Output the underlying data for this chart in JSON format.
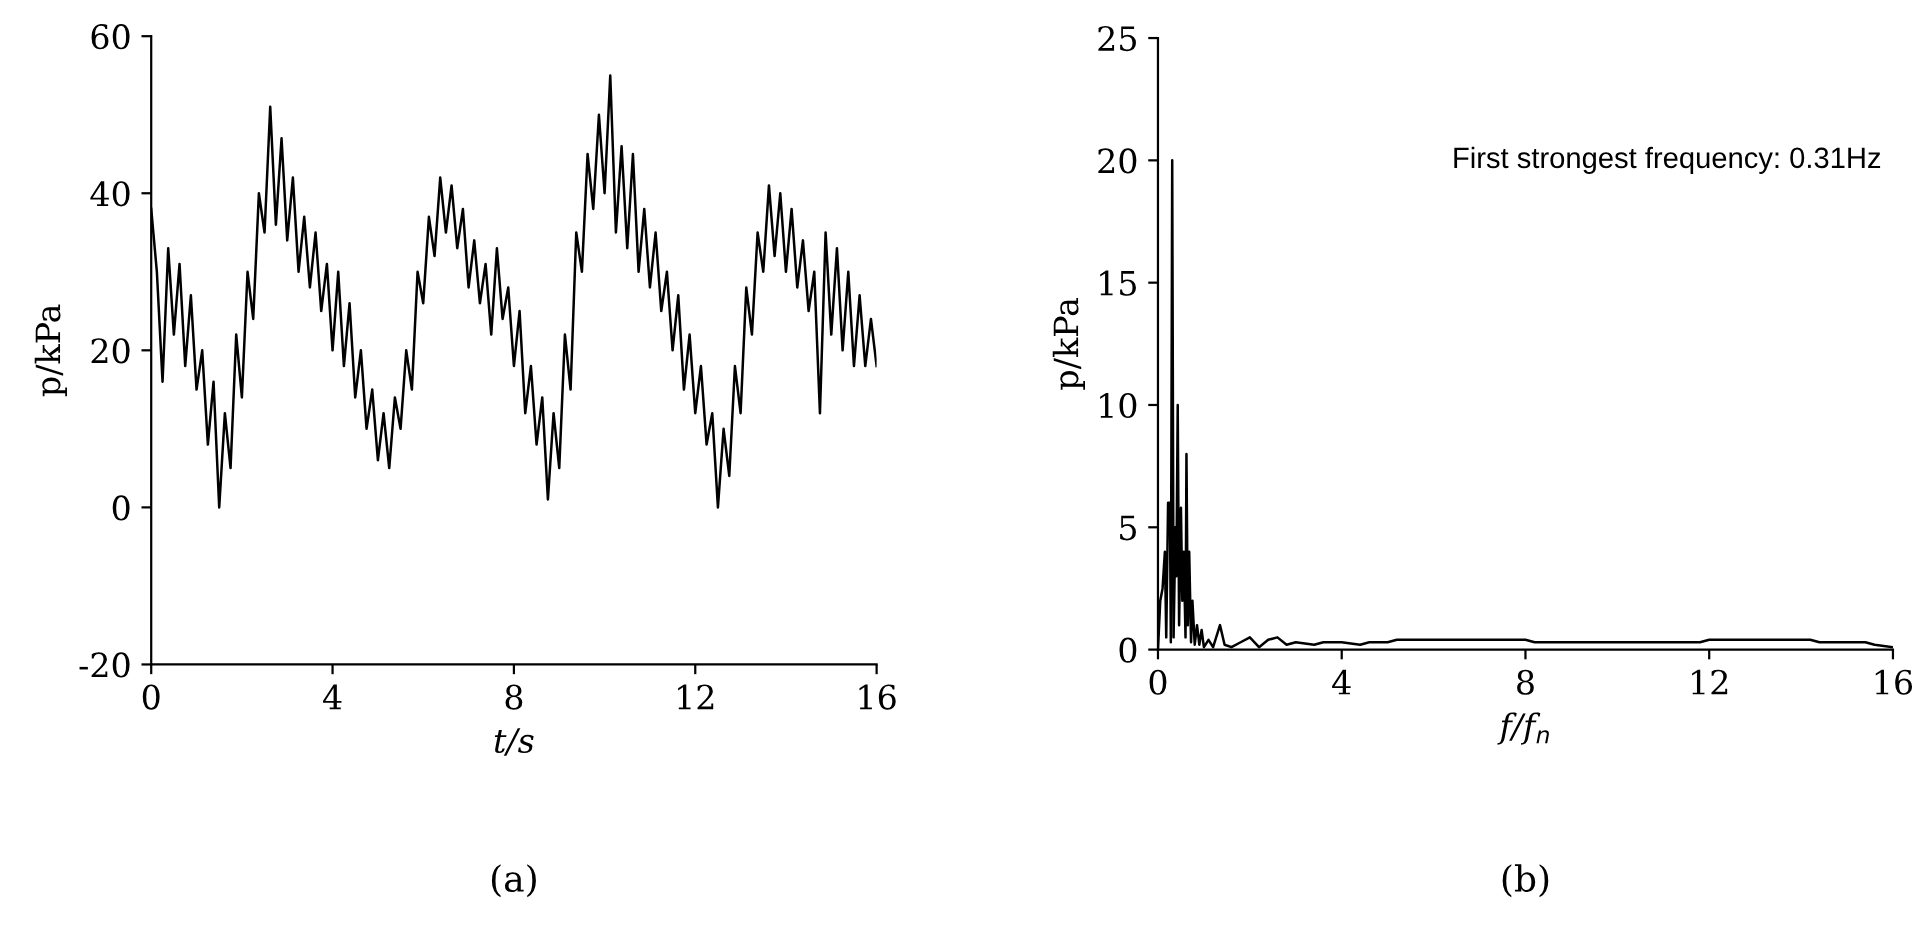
{
  "chart_data": [
    {
      "type": "line",
      "xlabel": "t/s",
      "ylabel": "p/kPa",
      "xlim": [
        0,
        16
      ],
      "xticks": [
        0,
        4,
        8,
        12,
        16
      ],
      "ylim": [
        -20,
        60
      ],
      "yticks": [
        -20,
        0,
        20,
        40,
        60
      ],
      "grid": false,
      "legend": false,
      "annotations": [
        "(a)"
      ],
      "series": [
        {
          "color": "#000000",
          "x": [
            0,
            0.125,
            0.25,
            0.375,
            0.5,
            0.625,
            0.75,
            0.875,
            1,
            1.125,
            1.25,
            1.375,
            1.5,
            1.625,
            1.75,
            1.875,
            2,
            2.125,
            2.25,
            2.375,
            2.5,
            2.625,
            2.75,
            2.875,
            3,
            3.125,
            3.25,
            3.375,
            3.5,
            3.625,
            3.75,
            3.875,
            4,
            4.125,
            4.25,
            4.375,
            4.5,
            4.625,
            4.75,
            4.875,
            5,
            5.125,
            5.25,
            5.375,
            5.5,
            5.625,
            5.75,
            5.875,
            6,
            6.125,
            6.25,
            6.375,
            6.5,
            6.625,
            6.75,
            6.875,
            7,
            7.125,
            7.25,
            7.375,
            7.5,
            7.625,
            7.75,
            7.875,
            8,
            8.125,
            8.25,
            8.375,
            8.5,
            8.625,
            8.75,
            8.875,
            9,
            9.125,
            9.25,
            9.375,
            9.5,
            9.625,
            9.75,
            9.875,
            10,
            10.125,
            10.25,
            10.375,
            10.5,
            10.625,
            10.75,
            10.875,
            11,
            11.125,
            11.25,
            11.375,
            11.5,
            11.625,
            11.75,
            11.875,
            12,
            12.125,
            12.25,
            12.375,
            12.5,
            12.625,
            12.75,
            12.875,
            13,
            13.125,
            13.25,
            13.375,
            13.5,
            13.625,
            13.75,
            13.875,
            14,
            14.125,
            14.25,
            14.375,
            14.5,
            14.625,
            14.75,
            14.875,
            15,
            15.125,
            15.25,
            15.375,
            15.5,
            15.625,
            15.75,
            15.875,
            16
          ],
          "values": [
            38,
            30,
            16,
            33,
            22,
            31,
            18,
            27,
            15,
            20,
            8,
            16,
            0,
            12,
            5,
            22,
            14,
            30,
            24,
            40,
            35,
            51,
            36,
            47,
            34,
            42,
            30,
            37,
            28,
            35,
            25,
            31,
            20,
            30,
            18,
            26,
            14,
            20,
            10,
            15,
            6,
            12,
            5,
            14,
            10,
            20,
            15,
            30,
            26,
            37,
            32,
            42,
            35,
            41,
            33,
            38,
            28,
            34,
            26,
            31,
            22,
            33,
            24,
            28,
            18,
            25,
            12,
            18,
            8,
            14,
            1,
            12,
            5,
            22,
            15,
            35,
            30,
            45,
            38,
            50,
            40,
            55,
            35,
            46,
            33,
            45,
            30,
            38,
            28,
            35,
            25,
            30,
            20,
            27,
            15,
            22,
            12,
            18,
            8,
            12,
            0,
            10,
            4,
            18,
            12,
            28,
            22,
            35,
            30,
            41,
            32,
            40,
            30,
            38,
            28,
            34,
            25,
            30,
            12,
            35,
            22,
            33,
            20,
            30,
            18,
            27,
            18,
            24,
            18
          ]
        }
      ]
    },
    {
      "type": "line",
      "xlabel": "f/f$_{n}$",
      "ylabel": "p/kPa",
      "xlim": [
        0,
        16
      ],
      "xticks": [
        0,
        4,
        8,
        12,
        16
      ],
      "ylim": [
        0,
        25
      ],
      "yticks": [
        0,
        5,
        10,
        15,
        20,
        25
      ],
      "grid": false,
      "legend": false,
      "annotations": [
        "First strongest frequency: 0.31Hz",
        "(b)"
      ],
      "series": [
        {
          "color": "#000000",
          "x": [
            0,
            0.05,
            0.1,
            0.15,
            0.18,
            0.22,
            0.26,
            0.28,
            0.31,
            0.34,
            0.38,
            0.4,
            0.43,
            0.46,
            0.5,
            0.53,
            0.56,
            0.6,
            0.62,
            0.65,
            0.68,
            0.72,
            0.75,
            0.8,
            0.85,
            0.9,
            0.95,
            1.0,
            1.1,
            1.2,
            1.35,
            1.45,
            1.6,
            1.8,
            2.0,
            2.2,
            2.4,
            2.6,
            2.8,
            3.0,
            3.4,
            3.6,
            4.0,
            4.4,
            4.6,
            5.0,
            5.2,
            8.0,
            8.2,
            11.8,
            12.0,
            14.2,
            14.4,
            15.4,
            15.6,
            16
          ],
          "values": [
            0,
            2,
            2.5,
            4,
            0.5,
            6,
            6,
            0.3,
            20,
            0.5,
            5,
            3,
            10,
            1,
            5.8,
            2,
            4,
            0.5,
            8,
            1,
            4,
            0.3,
            2,
            0.2,
            1,
            0.2,
            0.8,
            0.1,
            0.4,
            0.1,
            1.0,
            0.2,
            0.1,
            0.3,
            0.5,
            0.1,
            0.4,
            0.5,
            0.2,
            0.3,
            0.2,
            0.3,
            0.3,
            0.2,
            0.3,
            0.3,
            0.4,
            0.4,
            0.3,
            0.3,
            0.4,
            0.4,
            0.3,
            0.3,
            0.2,
            0.1
          ]
        }
      ]
    }
  ]
}
